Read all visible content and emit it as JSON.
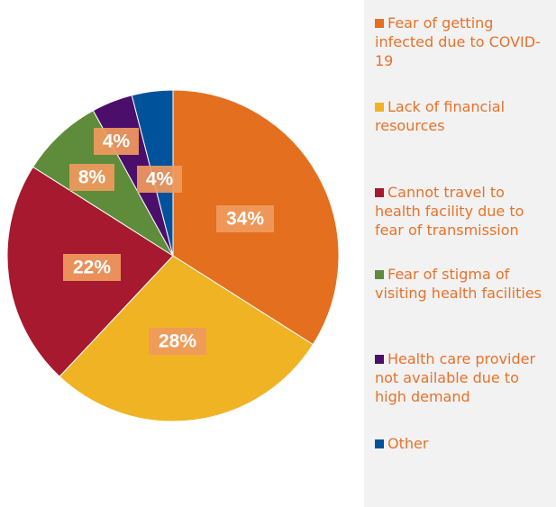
{
  "chart_data": {
    "type": "pie",
    "categories": [
      "Fear of getting infected due to COVID-19",
      "Lack of financial resources",
      "Cannot travel to health facility due to fear of transmission",
      "Fear of stigma of visiting health facilities",
      "Health care provider not available due to high demand",
      "Other"
    ],
    "values": [
      34,
      28,
      22,
      8,
      4,
      4
    ],
    "value_labels": [
      "34%",
      "28%",
      "22%",
      "8%",
      "4%",
      "4%"
    ],
    "colors": [
      "#e46f1e",
      "#f0b324",
      "#a6192e",
      "#5e8c3a",
      "#4b0f6b",
      "#00539b"
    ],
    "legend": "right"
  }
}
